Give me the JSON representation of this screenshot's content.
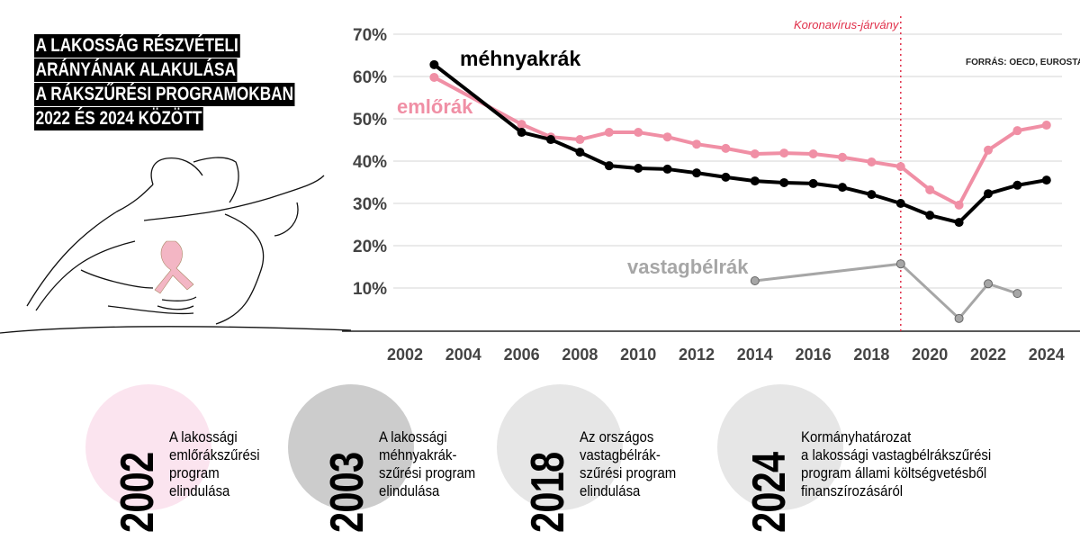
{
  "title_lines": [
    "A LAKOSSÁG RÉSZVÉTELI",
    "ARÁNYÁNAK ALAKULÁSA",
    "A RÁKSZŰRÉSI PROGRAMOKBAN",
    "2022 ÉS 2024 KÖZÖTT"
  ],
  "chart_data": {
    "type": "line",
    "source": "FORRÁS: OECD, EUROSTAT",
    "annotation": {
      "label": "Koronavírus-járvány",
      "x": 2019
    },
    "xlim": [
      2002,
      2024
    ],
    "ylim": [
      0,
      70
    ],
    "x_ticks": [
      2002,
      2004,
      2006,
      2008,
      2010,
      2012,
      2014,
      2016,
      2018,
      2020,
      2022,
      2024
    ],
    "y_ticks": [
      {
        "v": 10,
        "label": "10%"
      },
      {
        "v": 20,
        "label": "20%"
      },
      {
        "v": 30,
        "label": "30%"
      },
      {
        "v": 40,
        "label": "40%"
      },
      {
        "v": 50,
        "label": "50%"
      },
      {
        "v": 60,
        "label": "60%"
      },
      {
        "v": 70,
        "label": "70%"
      }
    ],
    "series": [
      {
        "name": "emlőrák",
        "color": "#f08fa5",
        "points": [
          [
            2003,
            59.8
          ],
          [
            2006,
            48.7
          ],
          [
            2007,
            45.7
          ],
          [
            2008,
            45.1
          ],
          [
            2009,
            46.8
          ],
          [
            2010,
            46.8
          ],
          [
            2011,
            45.7
          ],
          [
            2012,
            44.0
          ],
          [
            2013,
            43.0
          ],
          [
            2014,
            41.7
          ],
          [
            2015,
            41.9
          ],
          [
            2016,
            41.7
          ],
          [
            2017,
            40.9
          ],
          [
            2018,
            39.8
          ],
          [
            2019,
            38.7
          ],
          [
            2020,
            33.2
          ],
          [
            2021,
            29.6
          ],
          [
            2022,
            42.6
          ],
          [
            2023,
            47.2
          ],
          [
            2024,
            48.5
          ]
        ]
      },
      {
        "name": "méhnyakrák",
        "color": "#000000",
        "points": [
          [
            2003,
            62.8
          ],
          [
            2006,
            46.8
          ],
          [
            2007,
            45.1
          ],
          [
            2008,
            42.1
          ],
          [
            2009,
            38.9
          ],
          [
            2010,
            38.3
          ],
          [
            2011,
            38.1
          ],
          [
            2012,
            37.2
          ],
          [
            2013,
            36.2
          ],
          [
            2014,
            35.3
          ],
          [
            2015,
            34.9
          ],
          [
            2016,
            34.7
          ],
          [
            2017,
            33.8
          ],
          [
            2018,
            32.1
          ],
          [
            2019,
            30.0
          ],
          [
            2020,
            27.2
          ],
          [
            2021,
            25.5
          ],
          [
            2022,
            32.3
          ],
          [
            2023,
            34.3
          ],
          [
            2024,
            35.5
          ]
        ]
      },
      {
        "name": "vastagbélrák",
        "color": "#a6a6a6",
        "points": [
          [
            2014,
            11.7
          ],
          [
            2019,
            15.7
          ],
          [
            2021,
            2.8
          ],
          [
            2022,
            11.0
          ],
          [
            2023,
            8.7
          ]
        ]
      }
    ]
  },
  "timeline": [
    {
      "year": "2002",
      "text": "A lakossági\nemlőrákszűrési\nprogram\nelindulása",
      "color": "#fbe4ef"
    },
    {
      "year": "2003",
      "text": "A lakossági\nméhnyakrák-\nszűrési program\nelindulása",
      "color": "#cccccc"
    },
    {
      "year": "2018",
      "text": "Az országos\nvastagbélrák-\nszűrési program\nelindulása",
      "color": "#e6e6e6"
    },
    {
      "year": "2024",
      "text": "Kormányhatározat\na lakossági vastagbélrákszűrési\nprogram állami költségvetésből\nfinanszírozásáról",
      "color": "#e6e6e6"
    }
  ]
}
